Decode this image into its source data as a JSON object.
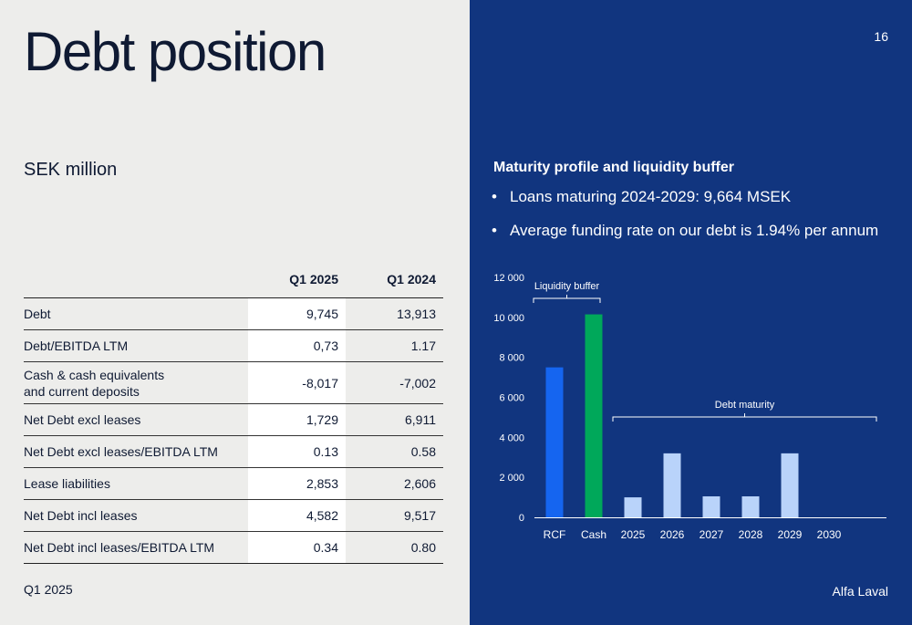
{
  "title": "Debt position",
  "unit": "SEK million",
  "footer_left": "Q1 2025",
  "footer_right": "Alfa Laval",
  "page_number": "16",
  "table": {
    "columns": [
      "Q1 2025",
      "Q1 2024"
    ],
    "rows": [
      {
        "label": "Debt",
        "q1_2025": "9,745",
        "q1_2024": "13,913"
      },
      {
        "label": "Debt/EBITDA LTM",
        "q1_2025": "0,73",
        "q1_2024": "1.17"
      },
      {
        "label": "Cash & cash equivalents\nand current deposits",
        "q1_2025": "-8,017",
        "q1_2024": "-7,002"
      },
      {
        "label": "Net Debt excl leases",
        "q1_2025": "1,729",
        "q1_2024": "6,911"
      },
      {
        "label": "Net Debt excl leases/EBITDA LTM",
        "q1_2025": "0.13",
        "q1_2024": "0.58"
      },
      {
        "label": "Lease liabilities",
        "q1_2025": "2,853",
        "q1_2024": "2,606"
      },
      {
        "label": "Net Debt incl leases",
        "q1_2025": "4,582",
        "q1_2024": "9,517"
      },
      {
        "label": "Net Debt incl leases/EBITDA LTM",
        "q1_2025": "0.34",
        "q1_2024": "0.80"
      }
    ]
  },
  "right_panel": {
    "subtitle": "Maturity profile and liquidity buffer",
    "bullets": [
      "Loans maturing 2024-2029: 9,664 MSEK",
      "Average funding rate on our debt is 1.94% per annum"
    ]
  },
  "chart_data": {
    "type": "bar",
    "categories": [
      "RCF",
      "Cash",
      "2025",
      "2026",
      "2027",
      "2028",
      "2029",
      "2030"
    ],
    "values": [
      7500,
      10150,
      1000,
      3200,
      1050,
      1050,
      3200,
      0
    ],
    "bar_colors": [
      "#1565f0",
      "#00a85a",
      "#b9d3fa",
      "#b9d3fa",
      "#b9d3fa",
      "#b9d3fa",
      "#b9d3fa",
      "#b9d3fa"
    ],
    "yticks": [
      0,
      2000,
      4000,
      6000,
      8000,
      10000,
      12000
    ],
    "ytick_labels": [
      "0",
      "2 000",
      "4 000",
      "6 000",
      "8 000",
      "10 000",
      "12 000"
    ],
    "ylim": [
      0,
      12000
    ],
    "annotations": [
      {
        "text": "Liquidity buffer",
        "from": "RCF",
        "to": "Cash"
      },
      {
        "text": "Debt maturity",
        "from": "2025",
        "to": "2030"
      }
    ],
    "colors": {
      "panel_bg": "#11357f",
      "axis": "#ffffff"
    }
  }
}
